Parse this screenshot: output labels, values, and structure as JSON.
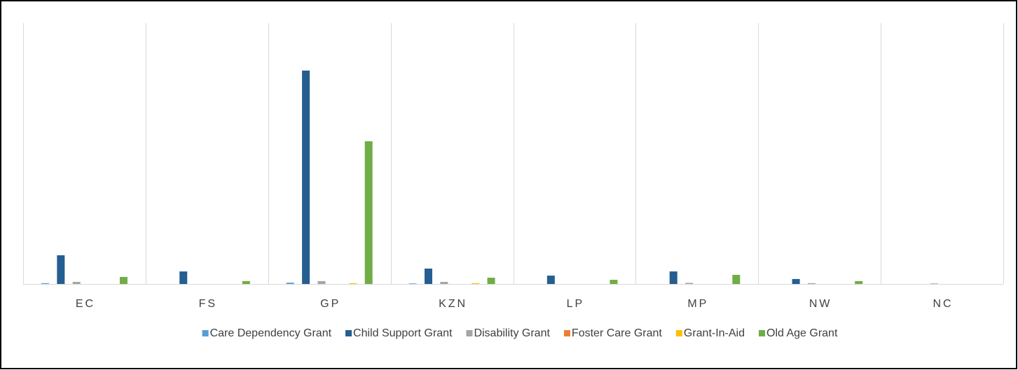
{
  "chart_data": {
    "type": "bar",
    "categories": [
      "EC",
      "FS",
      "GP",
      "KZN",
      "LP",
      "MP",
      "NW",
      "NC"
    ],
    "series": [
      {
        "name": "Care Dependency Grant",
        "color": "#5b9bd5",
        "values": [
          0.3,
          0,
          0.5,
          0.2,
          0,
          0,
          0,
          0
        ]
      },
      {
        "name": "Child Support Grant",
        "color": "#255e91",
        "values": [
          11,
          4.8,
          81.8,
          5.9,
          3.2,
          4.8,
          1.9,
          0
        ]
      },
      {
        "name": "Disability Grant",
        "color": "#a5a5a5",
        "values": [
          0.8,
          0,
          1.1,
          0.8,
          0,
          0.4,
          0.3,
          0.2
        ]
      },
      {
        "name": "Foster Care Grant",
        "color": "#ed7d31",
        "values": [
          0,
          0,
          0,
          0,
          0,
          0,
          0,
          0
        ]
      },
      {
        "name": "Grant-In-Aid",
        "color": "#ffc000",
        "values": [
          0,
          0,
          0.3,
          0.3,
          0,
          0,
          0,
          0
        ]
      },
      {
        "name": "Old Age Grant",
        "color": "#70ad47",
        "values": [
          2.7,
          1.1,
          54.7,
          2.4,
          1.6,
          3.5,
          1.1,
          0
        ]
      }
    ],
    "ylim": [
      0,
      100
    ],
    "legend": "bottom"
  }
}
